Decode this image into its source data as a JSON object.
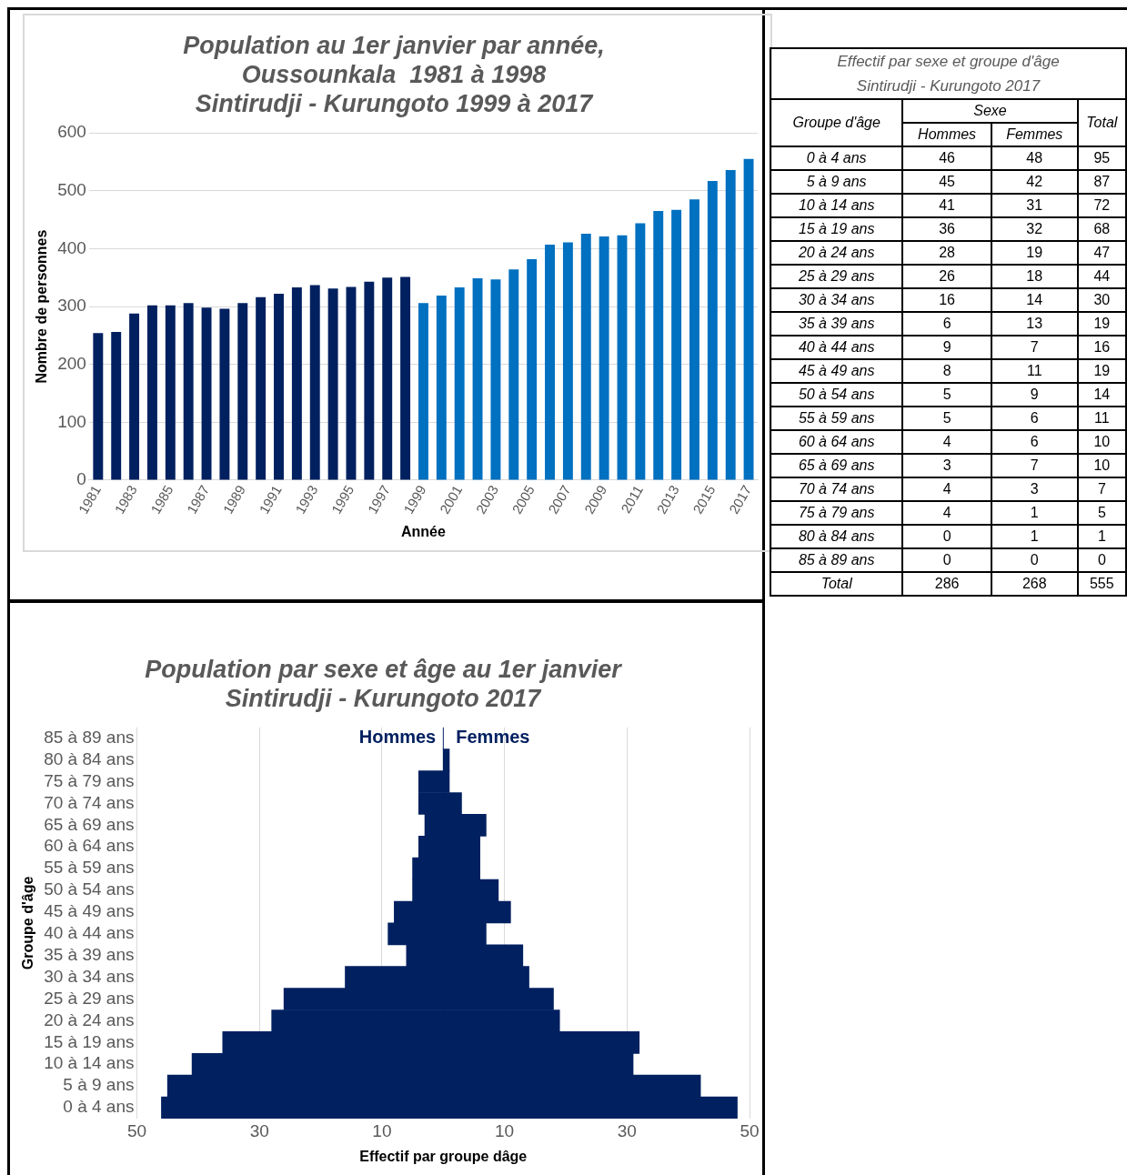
{
  "chart_data": [
    {
      "type": "bar",
      "title": "Population au 1er janvier par année,\nOussounkala  1981 à 1998\nSintirudji - Kurungoto 1999 à 2017",
      "xlabel": "Année",
      "ylabel": "Nombre de personnes",
      "categories": [
        "1981",
        null,
        "1983",
        null,
        "1985",
        null,
        "1987",
        null,
        "1989",
        null,
        "1991",
        null,
        "1993",
        null,
        "1995",
        null,
        "1997",
        null,
        "1999",
        null,
        "2001",
        null,
        "2003",
        null,
        "2005",
        null,
        "2007",
        null,
        "2009",
        null,
        "2011",
        null,
        "2013",
        null,
        "2015",
        null,
        "2017"
      ],
      "values": [
        254,
        256,
        288,
        302,
        302,
        306,
        298,
        296,
        306,
        316,
        322,
        333,
        337,
        331,
        334,
        343,
        350,
        351,
        306,
        319,
        333,
        349,
        347,
        364,
        382,
        407,
        411,
        426,
        421,
        423,
        444,
        465,
        467,
        485,
        517,
        536,
        555
      ],
      "colors": [
        "#002060",
        "#002060",
        "#002060",
        "#002060",
        "#002060",
        "#002060",
        "#002060",
        "#002060",
        "#002060",
        "#002060",
        "#002060",
        "#002060",
        "#002060",
        "#002060",
        "#002060",
        "#002060",
        "#002060",
        "#002060",
        "#0070c0",
        "#0070c0",
        "#0070c0",
        "#0070c0",
        "#0070c0",
        "#0070c0",
        "#0070c0",
        "#0070c0",
        "#0070c0",
        "#0070c0",
        "#0070c0",
        "#0070c0",
        "#0070c0",
        "#0070c0",
        "#0070c0",
        "#0070c0",
        "#0070c0",
        "#0070c0",
        "#0070c0"
      ],
      "ylim": [
        0,
        600
      ],
      "yticks": [
        0,
        100,
        200,
        300,
        400,
        500,
        600
      ],
      "grid": "y",
      "legend": false
    },
    {
      "type": "other",
      "title": "Effectif par sexe et groupe d'âge",
      "subtitle": "Sintirudji - Kurungoto  2017",
      "ylabel": "Groupe d'âge",
      "legend_title": "Sexe",
      "data_labels": true,
      "categories": [
        "0 à 4 ans",
        "5 à 9 ans",
        "10 à 14 ans",
        "15 à 19 ans",
        "20 à 24 ans",
        "25 à 29 ans",
        "30 à 34 ans",
        "35 à 39 ans",
        "40 à 44 ans",
        "45 à 49 ans",
        "50 à 54 ans",
        "55 à 59 ans",
        "60 à 64 ans",
        "65 à 69 ans",
        "70 à 74 ans",
        "75 à 79 ans",
        "80 à 84 ans",
        "85 à 89 ans",
        "Total"
      ],
      "series": [
        {
          "name": "Hommes",
          "values": [
            46,
            45,
            41,
            36,
            28,
            26,
            16,
            6,
            9,
            8,
            5,
            5,
            4,
            3,
            4,
            4,
            0,
            0,
            286
          ]
        },
        {
          "name": "Femmes",
          "values": [
            48,
            42,
            31,
            32,
            19,
            18,
            14,
            13,
            7,
            11,
            9,
            6,
            6,
            7,
            3,
            1,
            1,
            0,
            268
          ]
        },
        {
          "name": "Total",
          "values": [
            95,
            87,
            72,
            68,
            47,
            44,
            30,
            19,
            16,
            19,
            14,
            11,
            10,
            10,
            7,
            5,
            1,
            0,
            555
          ]
        }
      ]
    },
    {
      "type": "bar",
      "orientation": "horizontal",
      "stacked": true,
      "title": "Population par sexe et âge au 1er janvier\nSintirudji - Kurungoto 2017",
      "xlabel": "Effectif par groupe dâge",
      "ylabel": "Groupe d'âge",
      "categories": [
        "85 à 89 ans",
        "80 à 84 ans",
        "75 à 79 ans",
        "70 à 74 ans",
        "65 à 69 ans",
        "60 à 64 ans",
        "55 à 59 ans",
        "50 à 54 ans",
        "45 à 49 ans",
        "40 à 44 ans",
        "35 à 39 ans",
        "30 à 34 ans",
        "25 à 29 ans",
        "20 à 24 ans",
        "15 à 19 ans",
        "10 à 14 ans",
        "5 à 9 ans",
        "0 à 4 ans"
      ],
      "series": [
        {
          "name": "Hommes",
          "color": "#002060",
          "values": [
            0,
            0,
            -4,
            -4,
            -3,
            -4,
            -5,
            -5,
            -8,
            -9,
            -6,
            -16,
            -26,
            -28,
            -36,
            -41,
            -45,
            -46
          ]
        },
        {
          "name": "Femmes",
          "color": "#002060",
          "values": [
            0,
            1,
            1,
            3,
            7,
            6,
            6,
            9,
            11,
            7,
            13,
            14,
            18,
            19,
            32,
            31,
            42,
            48
          ]
        }
      ],
      "xlim": [
        -50,
        50
      ],
      "xticks": [
        {
          "value": -50,
          "label": "50"
        },
        {
          "value": -30,
          "label": "30"
        },
        {
          "value": -10,
          "label": "10"
        },
        {
          "value": 10,
          "label": "10"
        },
        {
          "value": 30,
          "label": "30"
        },
        {
          "value": 50,
          "label": "50"
        }
      ],
      "grid": "x",
      "legend": false
    }
  ]
}
